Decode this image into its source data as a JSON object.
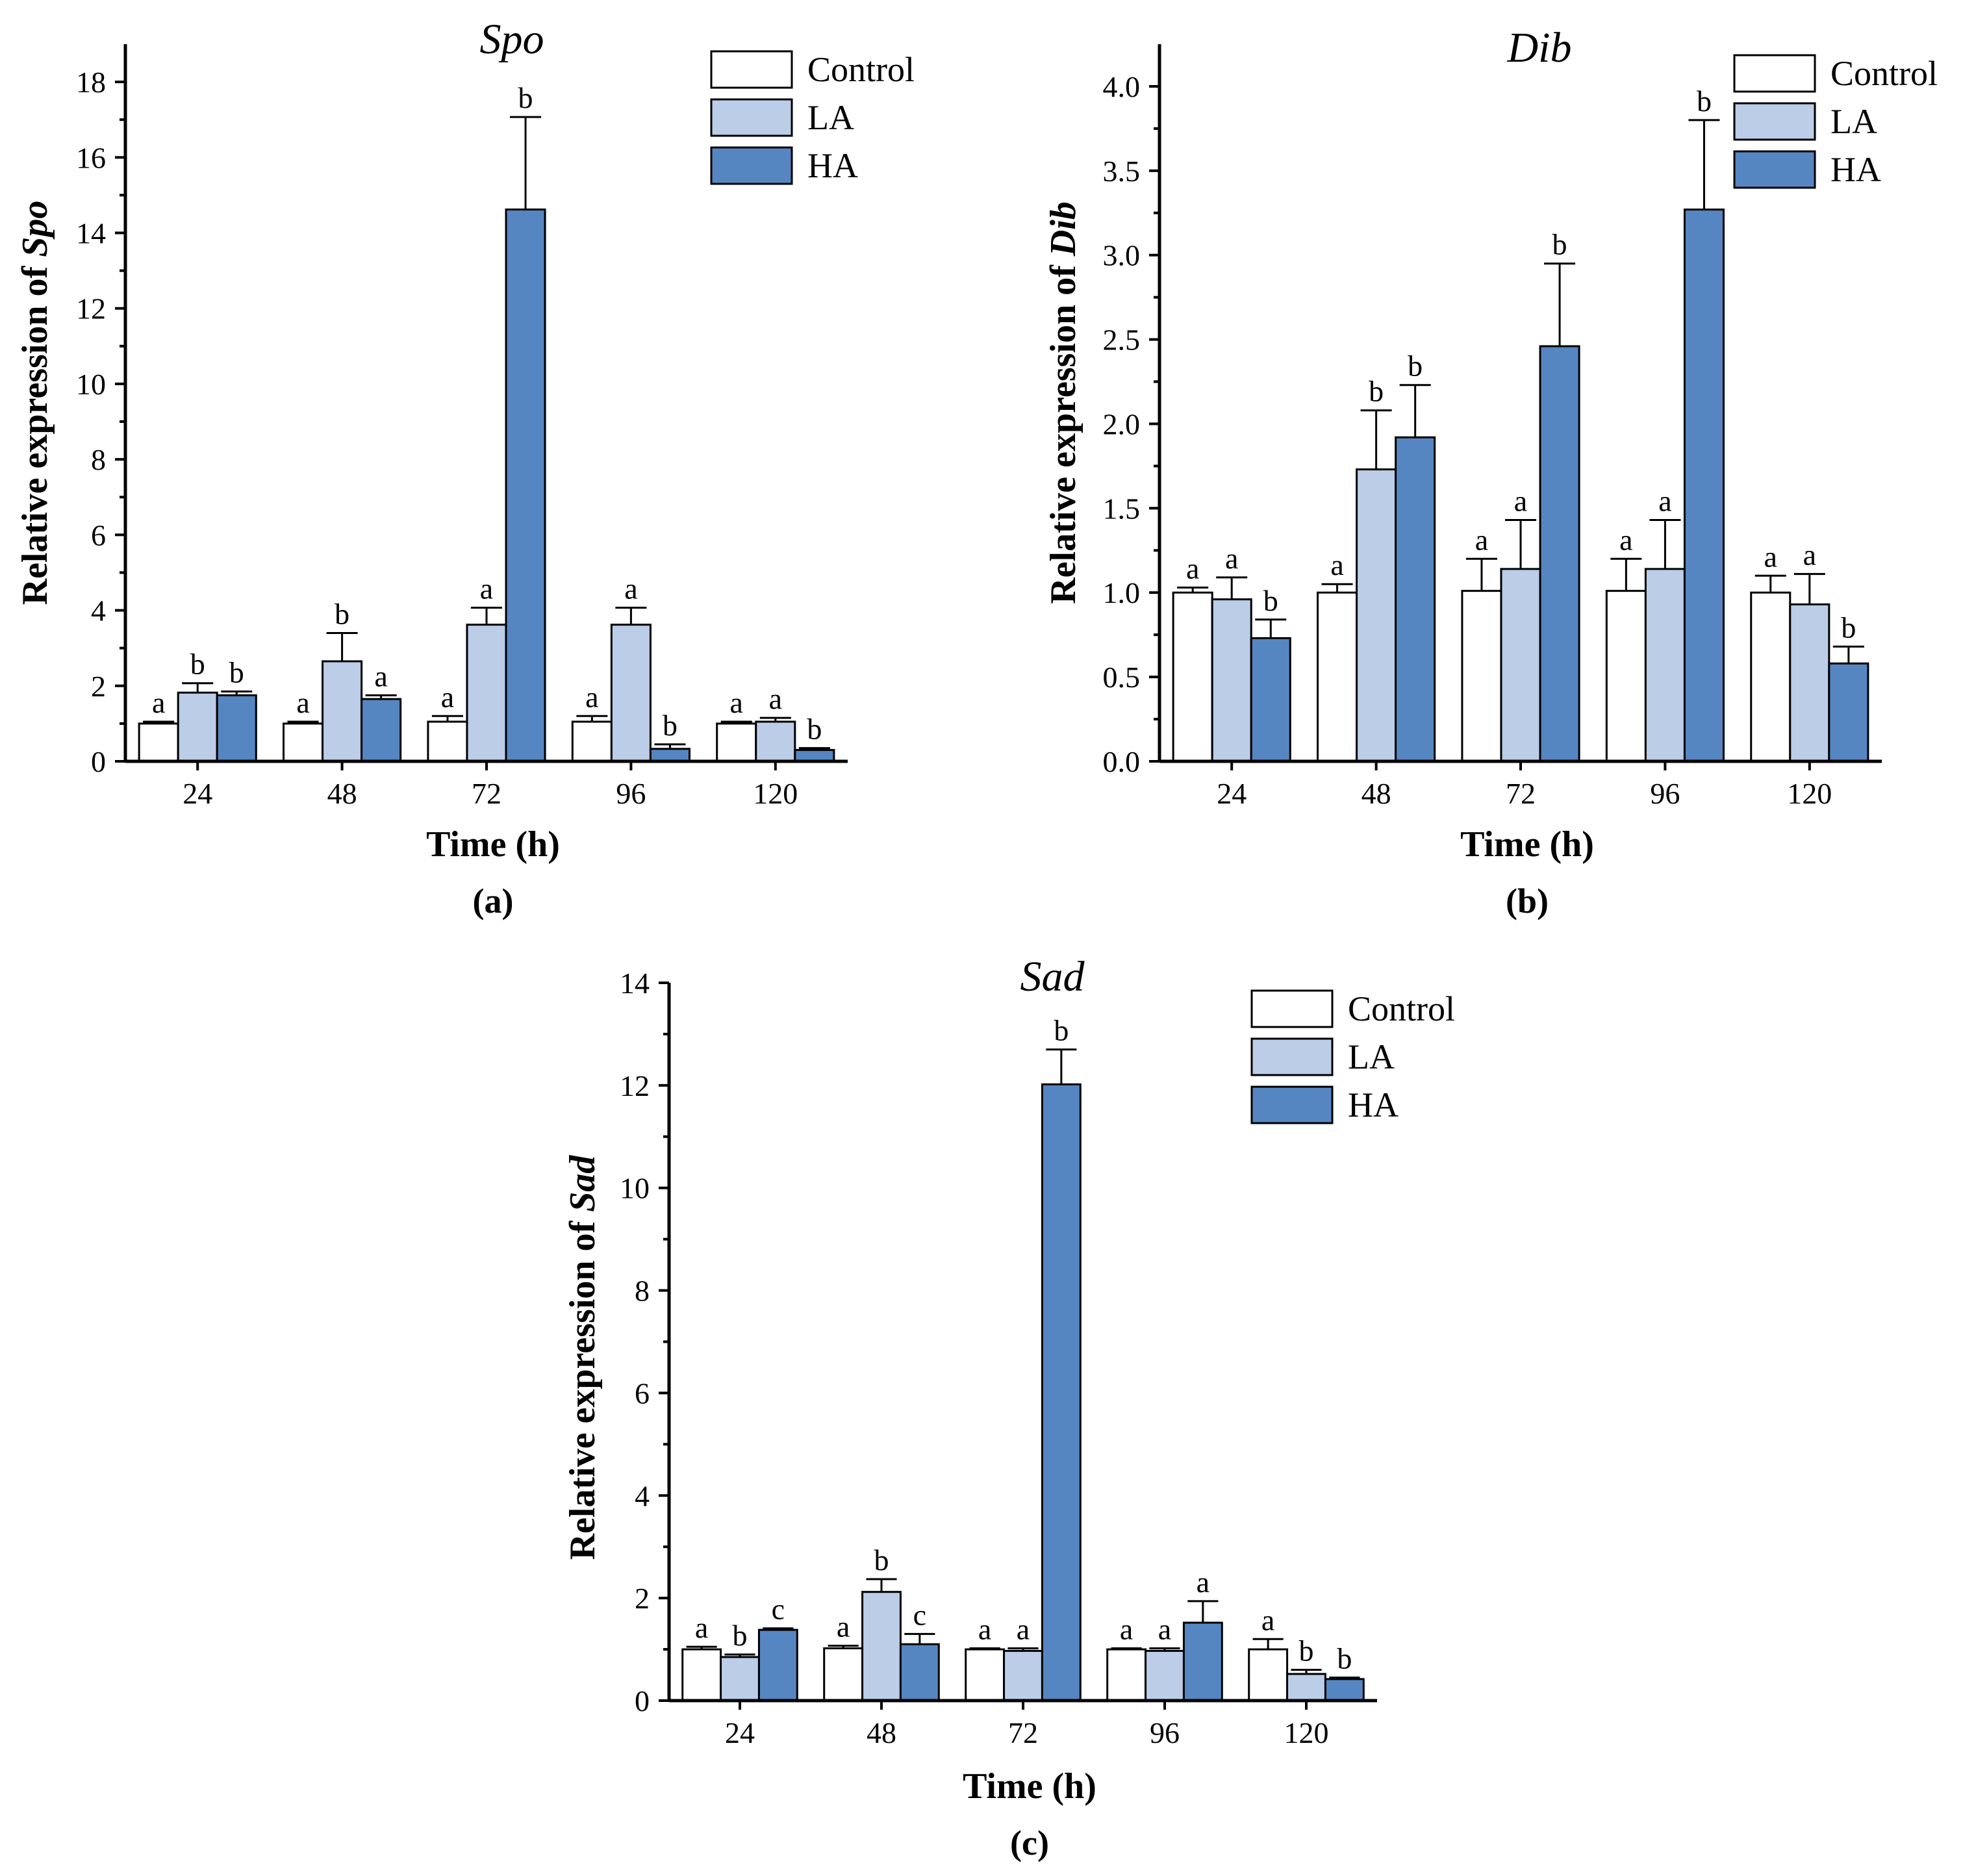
{
  "chart_data": [
    {
      "type": "bar",
      "panel_label": "(a)",
      "title": "Spo",
      "ylabel_prefix": "Relative expression of ",
      "ylabel_gene": "Spo",
      "xlabel": "Time (h)",
      "categories": [
        "24",
        "48",
        "72",
        "96",
        "120"
      ],
      "ylim": [
        0,
        19
      ],
      "yticks": [
        0,
        2,
        4,
        6,
        8,
        10,
        12,
        14,
        16,
        18
      ],
      "ytick_labels": [
        "0",
        "2",
        "4",
        "6",
        "8",
        "10",
        "12",
        "14",
        "16",
        "18"
      ],
      "legend_position": "top-right",
      "series": [
        {
          "name": "Control",
          "color": "#ffffff",
          "values": [
            1.0,
            1.0,
            1.05,
            1.05,
            1.0
          ],
          "errors": [
            0.05,
            0.05,
            0.15,
            0.15,
            0.05
          ],
          "letters": [
            "a",
            "a",
            "a",
            "a",
            "a"
          ]
        },
        {
          "name": "LA",
          "color": "#bccde8",
          "values": [
            1.82,
            2.65,
            3.62,
            3.62,
            1.05
          ],
          "errors": [
            0.25,
            0.75,
            0.45,
            0.45,
            0.1
          ],
          "letters": [
            "b",
            "b",
            "a",
            "a",
            "a"
          ]
        },
        {
          "name": "HA",
          "color": "#5686c2",
          "values": [
            1.75,
            1.65,
            14.62,
            0.33,
            0.3
          ],
          "errors": [
            0.1,
            0.1,
            2.45,
            0.12,
            0.05
          ],
          "letters": [
            "b",
            "a",
            "b",
            "b",
            "b"
          ]
        }
      ]
    },
    {
      "type": "bar",
      "panel_label": "(b)",
      "title": "Dib",
      "ylabel_prefix": "Relative expression of ",
      "ylabel_gene": "Dib",
      "xlabel": "Time (h)",
      "categories": [
        "24",
        "48",
        "72",
        "96",
        "120"
      ],
      "ylim": [
        0,
        4.25
      ],
      "yticks": [
        0,
        0.5,
        1.0,
        1.5,
        2.0,
        2.5,
        3.0,
        3.5,
        4.0
      ],
      "ytick_labels": [
        "0.0",
        "0.5",
        "1.0",
        "1.5",
        "2.0",
        "2.5",
        "3.0",
        "3.5",
        "4.0"
      ],
      "legend_position": "top-right",
      "series": [
        {
          "name": "Control",
          "color": "#ffffff",
          "values": [
            1.0,
            1.0,
            1.01,
            1.01,
            1.0
          ],
          "errors": [
            0.03,
            0.05,
            0.19,
            0.19,
            0.1
          ],
          "letters": [
            "a",
            "a",
            "a",
            "a",
            "a"
          ]
        },
        {
          "name": "LA",
          "color": "#bccde8",
          "values": [
            0.96,
            1.73,
            1.14,
            1.14,
            0.93
          ],
          "errors": [
            0.13,
            0.35,
            0.29,
            0.29,
            0.18
          ],
          "letters": [
            "a",
            "b",
            "a",
            "a",
            "a"
          ]
        },
        {
          "name": "HA",
          "color": "#5686c2",
          "values": [
            0.73,
            1.92,
            2.46,
            3.27,
            0.58
          ],
          "errors": [
            0.11,
            0.31,
            0.49,
            0.53,
            0.1
          ],
          "letters": [
            "b",
            "b",
            "b",
            "b",
            "b"
          ]
        }
      ]
    },
    {
      "type": "bar",
      "panel_label": "(c)",
      "title": "Sad",
      "ylabel_prefix": "Relative expression of ",
      "ylabel_gene": "Sad",
      "xlabel": "Time (h)",
      "categories": [
        "24",
        "48",
        "72",
        "96",
        "120"
      ],
      "ylim": [
        0,
        14
      ],
      "yticks": [
        0,
        2,
        4,
        6,
        8,
        10,
        12,
        14
      ],
      "ytick_labels": [
        "0",
        "2",
        "4",
        "6",
        "8",
        "10",
        "12",
        "14"
      ],
      "legend_position": "top-right",
      "series": [
        {
          "name": "Control",
          "color": "#ffffff",
          "values": [
            1.0,
            1.02,
            1.0,
            1.0,
            1.0
          ],
          "errors": [
            0.05,
            0.05,
            0.02,
            0.02,
            0.2
          ],
          "letters": [
            "a",
            "a",
            "a",
            "a",
            "a"
          ]
        },
        {
          "name": "LA",
          "color": "#bccde8",
          "values": [
            0.85,
            2.12,
            0.97,
            0.97,
            0.52
          ],
          "errors": [
            0.05,
            0.25,
            0.05,
            0.05,
            0.08
          ],
          "letters": [
            "b",
            "b",
            "a",
            "a",
            "b"
          ]
        },
        {
          "name": "HA",
          "color": "#5686c2",
          "values": [
            1.38,
            1.1,
            12.02,
            1.52,
            0.42
          ],
          "errors": [
            0.03,
            0.2,
            0.68,
            0.42,
            0.03
          ],
          "letters": [
            "c",
            "c",
            "b",
            "a",
            "b"
          ]
        }
      ]
    }
  ]
}
